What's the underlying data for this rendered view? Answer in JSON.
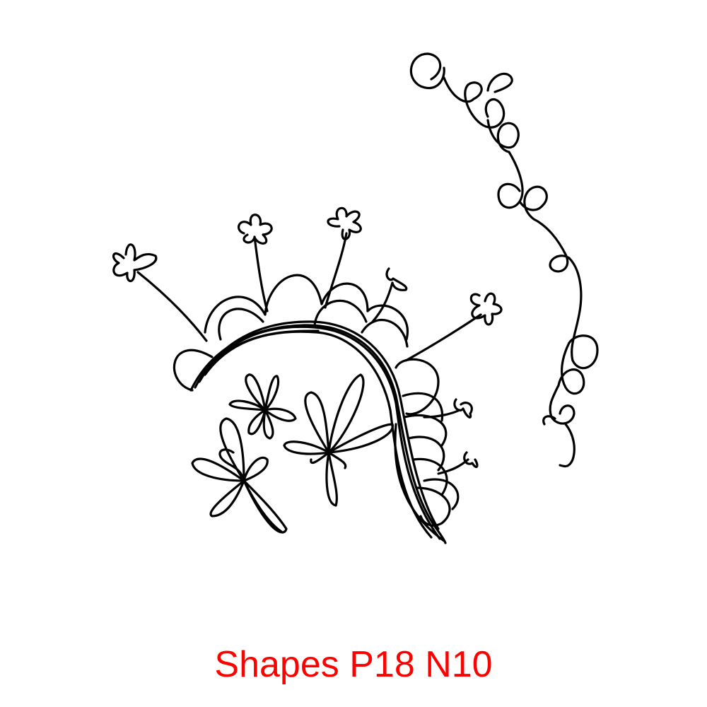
{
  "caption": "Shapes P18 N10",
  "colors": {
    "ink": "#000000",
    "caption": "#ff0000",
    "background": "#ffffff"
  }
}
